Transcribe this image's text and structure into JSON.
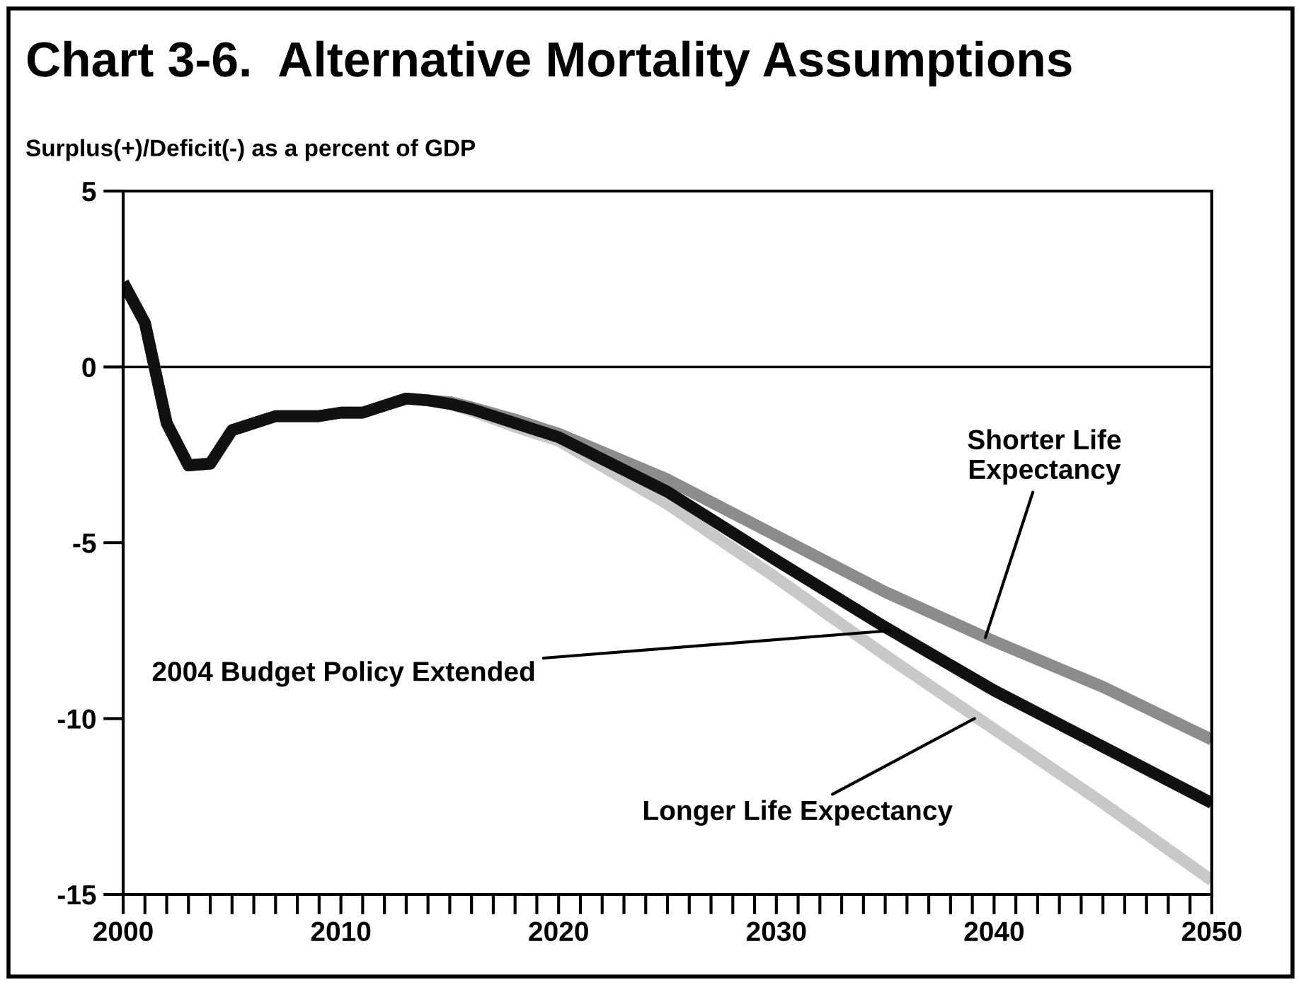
{
  "chart_data": {
    "type": "line",
    "title": "Chart 3-6.  Alternative Mortality Assumptions",
    "ylabel": "Surplus(+)/Deficit(-) as a percent of GDP",
    "x": [
      2000,
      2001,
      2002,
      2003,
      2004,
      2005,
      2006,
      2007,
      2008,
      2009,
      2010,
      2011,
      2012,
      2013,
      2014,
      2015,
      2016,
      2018,
      2020,
      2025,
      2030,
      2035,
      2040,
      2045,
      2050
    ],
    "series": [
      {
        "color": "#c8c8c8",
        "values": [
          2.4,
          1.25,
          -1.6,
          -2.8,
          -2.75,
          -1.8,
          -1.6,
          -1.4,
          -1.4,
          -1.4,
          -1.3,
          -1.3,
          -1.1,
          -0.9,
          -0.95,
          -1.05,
          -1.25,
          -1.7,
          -2.1,
          -3.9,
          -6.0,
          -8.2,
          -10.3,
          -12.4,
          -14.6
        ]
      },
      {
        "color": "#8c8c8c",
        "values": [
          2.4,
          1.25,
          -1.6,
          -2.8,
          -2.75,
          -1.8,
          -1.6,
          -1.4,
          -1.4,
          -1.4,
          -1.3,
          -1.3,
          -1.1,
          -0.9,
          -0.95,
          -1.0,
          -1.15,
          -1.5,
          -1.9,
          -3.2,
          -4.8,
          -6.4,
          -7.8,
          -9.1,
          -10.6
        ]
      },
      {
        "color": "#111111",
        "values": [
          2.4,
          1.25,
          -1.6,
          -2.8,
          -2.75,
          -1.8,
          -1.6,
          -1.4,
          -1.4,
          -1.4,
          -1.3,
          -1.3,
          -1.1,
          -0.9,
          -0.95,
          -1.05,
          -1.2,
          -1.6,
          -2.0,
          -3.55,
          -5.5,
          -7.4,
          -9.2,
          -10.8,
          -12.4
        ]
      }
    ],
    "xlim": [
      2000,
      2050
    ],
    "ylim": [
      -15,
      5
    ],
    "yticks": [
      -15,
      -10,
      -5,
      0,
      5
    ],
    "xticks": [
      2000,
      {
        "value": 2001,
        "label": null
      },
      {
        "value": 2002,
        "label": null
      },
      {
        "value": 2003,
        "label": null
      },
      {
        "value": 2004,
        "label": null
      },
      {
        "value": 2005,
        "label": null
      },
      {
        "value": 2006,
        "label": null
      },
      {
        "value": 2007,
        "label": null
      },
      {
        "value": 2008,
        "label": null
      },
      {
        "value": 2009,
        "label": null
      },
      2010,
      {
        "value": 2011,
        "label": null
      },
      {
        "value": 2012,
        "label": null
      },
      {
        "value": 2013,
        "label": null
      },
      {
        "value": 2014,
        "label": null
      },
      {
        "value": 2015,
        "label": null
      },
      {
        "value": 2016,
        "label": null
      },
      {
        "value": 2017,
        "label": null
      },
      {
        "value": 2018,
        "label": null
      },
      {
        "value": 2019,
        "label": null
      },
      2020,
      {
        "value": 2021,
        "label": null
      },
      {
        "value": 2022,
        "label": null
      },
      {
        "value": 2023,
        "label": null
      },
      {
        "value": 2024,
        "label": null
      },
      {
        "value": 2025,
        "label": null
      },
      {
        "value": 2026,
        "label": null
      },
      {
        "value": 2027,
        "label": null
      },
      {
        "value": 2028,
        "label": null
      },
      {
        "value": 2029,
        "label": null
      },
      2030,
      {
        "value": 2031,
        "label": null
      },
      {
        "value": 2032,
        "label": null
      },
      {
        "value": 2033,
        "label": null
      },
      {
        "value": 2034,
        "label": null
      },
      {
        "value": 2035,
        "label": null
      },
      {
        "value": 2036,
        "label": null
      },
      {
        "value": 2037,
        "label": null
      },
      {
        "value": 2038,
        "label": null
      },
      {
        "value": 2039,
        "label": null
      },
      2040,
      {
        "value": 2041,
        "label": null
      },
      {
        "value": 2042,
        "label": null
      },
      {
        "value": 2043,
        "label": null
      },
      {
        "value": 2044,
        "label": null
      },
      {
        "value": 2045,
        "label": null
      },
      {
        "value": 2046,
        "label": null
      },
      {
        "value": 2047,
        "label": null
      },
      {
        "value": 2048,
        "label": null
      },
      {
        "value": 2049,
        "label": null
      },
      2050
    ],
    "ref_lines": [
      {
        "axis": "y",
        "value": 0,
        "color": "#000000"
      }
    ],
    "annotations": [
      {
        "text": "Shorter Life\nExpectancy",
        "x": 2039.6,
        "y": -7.7
      },
      {
        "text": "2004 Budget Policy Extended",
        "x": 2035.2,
        "y": -7.5
      },
      {
        "text": "Longer Life Expectancy",
        "x": 2039.1,
        "y": -10.0
      }
    ],
    "grid": false,
    "legend": false,
    "marker": "none",
    "line_style": "solid"
  }
}
